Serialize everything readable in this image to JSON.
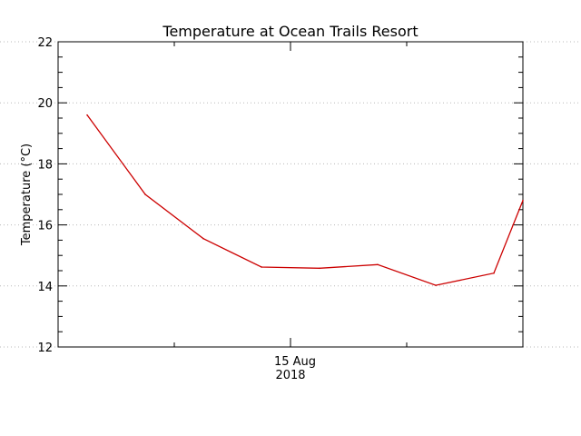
{
  "chart_data": {
    "type": "line",
    "title": "Temperature at Ocean Trails Resort",
    "xlabel": "",
    "ylabel": "Temperature (°C)",
    "ylim": [
      12,
      22
    ],
    "yticks": [
      12,
      14,
      16,
      18,
      20,
      22
    ],
    "xlim": [
      "2018-08-07",
      "2018-08-23"
    ],
    "x_tick_label": {
      "date": "2018-08-15",
      "line1": "15 Aug",
      "line2": "2018"
    },
    "grid": true,
    "legend": false,
    "series": [
      {
        "color": "#cc0000",
        "x": [
          "2018-08-08",
          "2018-08-10",
          "2018-08-12",
          "2018-08-14",
          "2018-08-16",
          "2018-08-18",
          "2018-08-20",
          "2018-08-22",
          "2018-08-23"
        ],
        "values": [
          19.6,
          17.0,
          15.55,
          14.62,
          14.58,
          14.7,
          14.02,
          14.42,
          16.8
        ]
      }
    ]
  }
}
